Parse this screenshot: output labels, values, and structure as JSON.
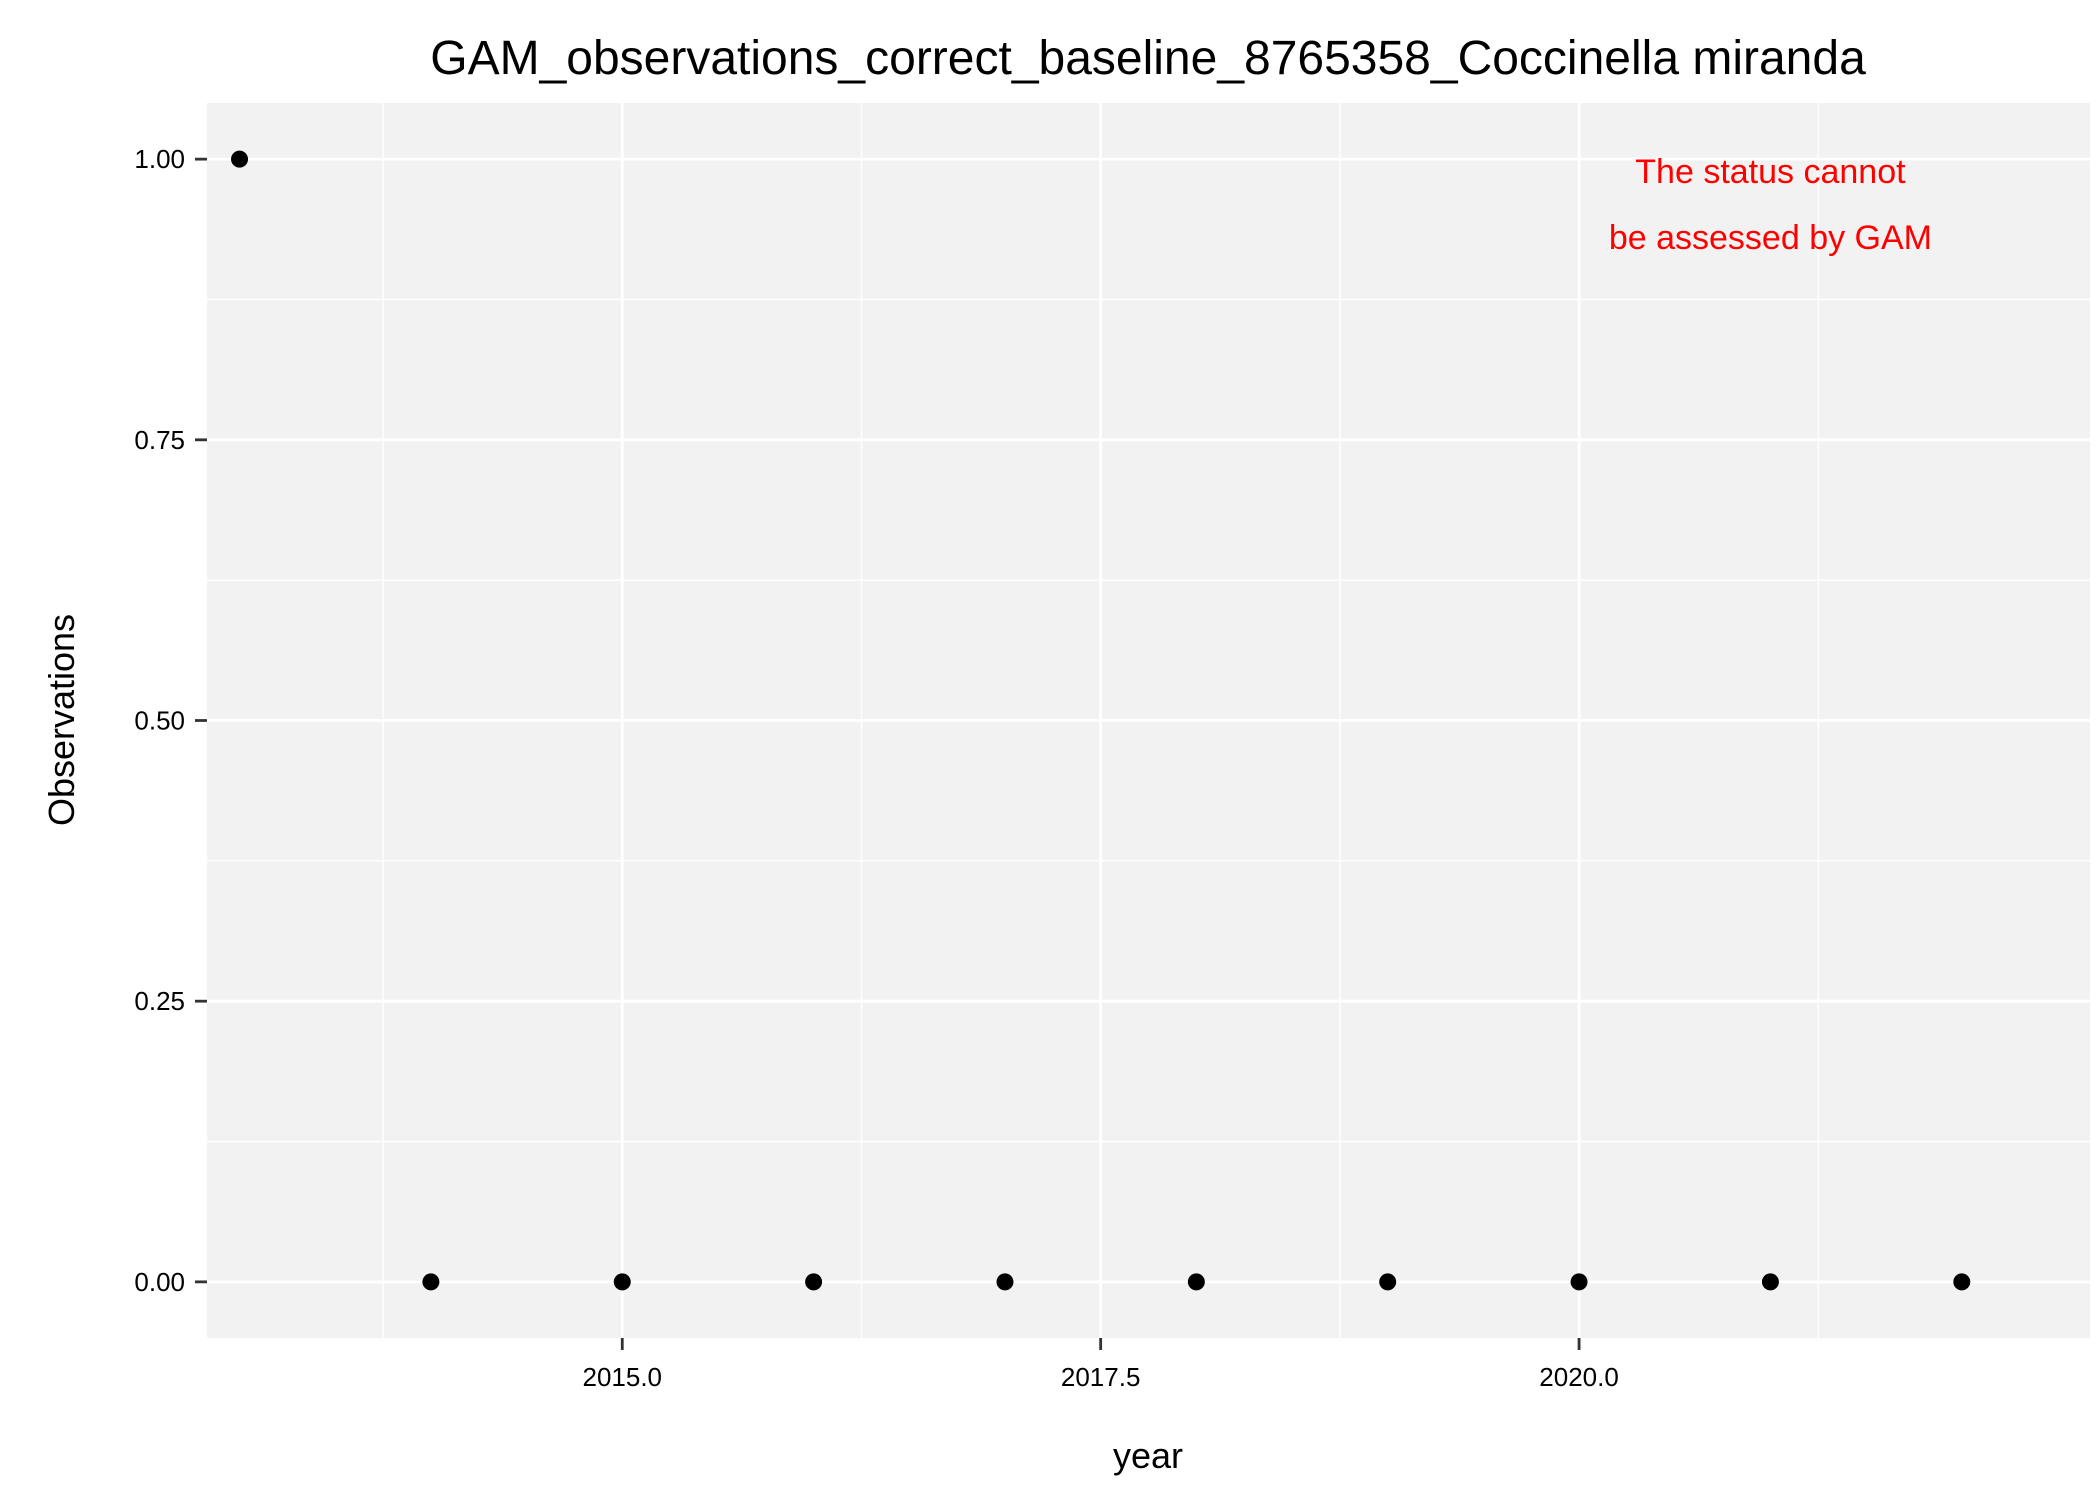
{
  "chart_data": {
    "type": "scatter",
    "title": "GAM_observations_correct_baseline_8765358_Coccinella miranda",
    "xlabel": "year",
    "ylabel": "Observations",
    "xlim": [
      2012.83,
      2022.67
    ],
    "ylim": [
      -0.05,
      1.05
    ],
    "x_ticks": [
      2015.0,
      2017.5,
      2020.0
    ],
    "x_tick_labels": [
      "2015.0",
      "2017.5",
      "2020.0"
    ],
    "x_minor_ticks": [
      2013.75,
      2016.25,
      2018.75,
      2021.25
    ],
    "y_ticks": [
      0.0,
      0.25,
      0.5,
      0.75,
      1.0
    ],
    "y_tick_labels": [
      "0.00",
      "0.25",
      "0.50",
      "0.75",
      "1.00"
    ],
    "y_minor_ticks": [
      0.125,
      0.375,
      0.625,
      0.875
    ],
    "grid": true,
    "legend": "none",
    "points": [
      {
        "x": 2013,
        "y": 1
      },
      {
        "x": 2014,
        "y": 0
      },
      {
        "x": 2015,
        "y": 0
      },
      {
        "x": 2016,
        "y": 0
      },
      {
        "x": 2017,
        "y": 0
      },
      {
        "x": 2018,
        "y": 0
      },
      {
        "x": 2019,
        "y": 0
      },
      {
        "x": 2020,
        "y": 0
      },
      {
        "x": 2021,
        "y": 0
      },
      {
        "x": 2022,
        "y": 0
      }
    ],
    "annotation": {
      "lines": [
        "The status cannot",
        "be assessed by GAM"
      ],
      "x": 2021.0,
      "y": 0.96,
      "color": "#ff0000"
    },
    "colors": {
      "panel_background": "#f2f2f2",
      "grid": "#ffffff",
      "point": "#000000"
    }
  }
}
